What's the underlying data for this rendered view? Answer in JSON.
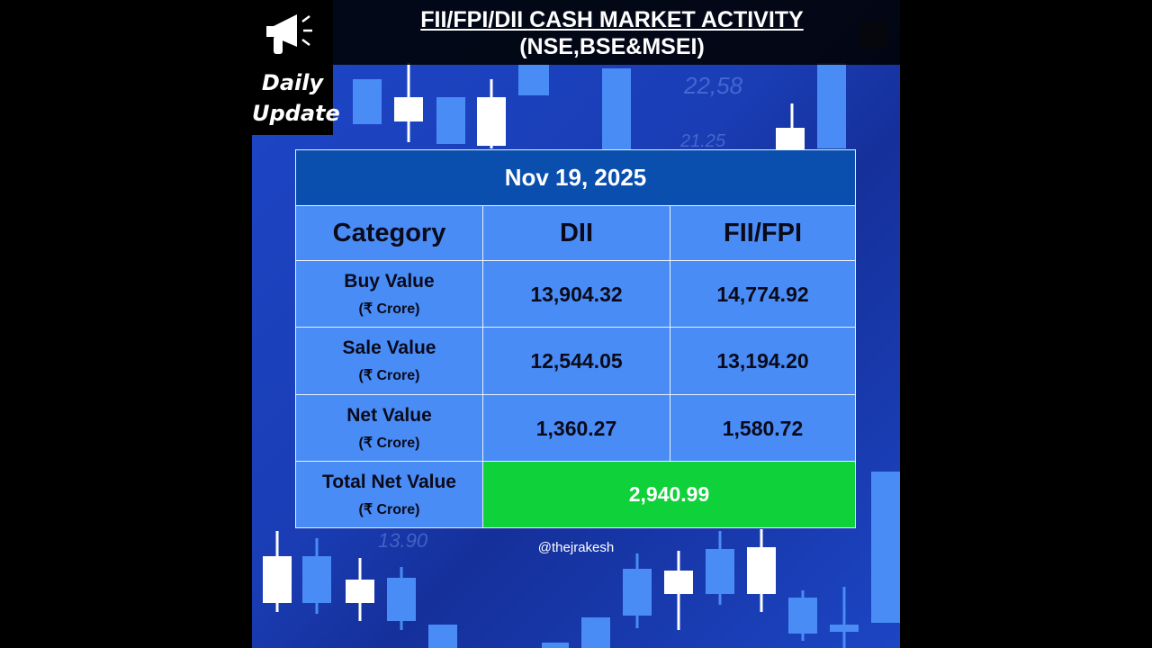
{
  "header": {
    "title": "FII/FPI/DII CASH MARKET ACTIVITY",
    "subtitle": "(NSE,BSE&MSEI)"
  },
  "badge": {
    "line1": "Daily",
    "line2": "Update"
  },
  "background": {
    "labels": [
      "22,58",
      "21.25",
      "13.90"
    ]
  },
  "table": {
    "date": "Nov 19, 2025",
    "columns": [
      "Category",
      "DII",
      "FII/FPI"
    ],
    "rows": [
      {
        "label": "Buy Value",
        "unit": "(₹ Crore)",
        "values": [
          "13,904.32",
          "14,774.92"
        ]
      },
      {
        "label": "Sale Value",
        "unit": "(₹ Crore)",
        "values": [
          "12,544.05",
          "13,194.20"
        ]
      },
      {
        "label": "Net Value",
        "unit": "(₹ Crore)",
        "values": [
          "1,360.27",
          "1,580.72"
        ]
      }
    ],
    "total": {
      "label": "Total Net Value",
      "unit": "(₹ Crore)",
      "value": "2,940.99"
    }
  },
  "credit": "@thejrakesh"
}
